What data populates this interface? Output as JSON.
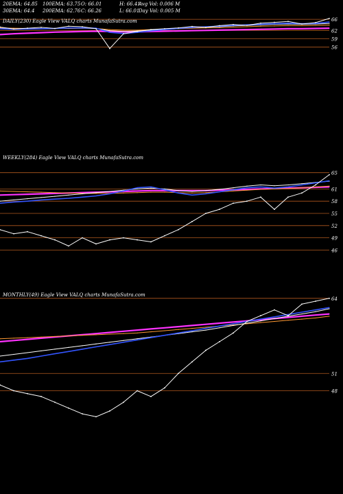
{
  "header": {
    "ema20": "20EMA: 64.85",
    "ema100": "100EMA: 63.75",
    "open": "O: 66.01",
    "high": "H: 66.41",
    "avgvol": "Avg Vol: 0.006  M",
    "ema30": "30EMA: 64.4",
    "ema200": "200EMA: 62.76",
    "close": "C: 66.26",
    "low": "L: 66.01",
    "dayvol": "Day Vol: 0.005 M"
  },
  "chart_data": [
    {
      "type": "line",
      "title": "DAILY(230) Eagle  View  VALQ charts MunafaSutra.com",
      "ylim": [
        33.5,
        67.5
      ],
      "ytick_labels": [
        "66",
        "62",
        "59",
        "56"
      ],
      "yticks": [
        66,
        62,
        59,
        56
      ],
      "grid": "horizontal price levels",
      "x": [
        0,
        1,
        2,
        3,
        4,
        5,
        6,
        7,
        8,
        9,
        10,
        11,
        12,
        13,
        14,
        15,
        16,
        17,
        18,
        19,
        20,
        21,
        22,
        23,
        24
      ],
      "series": [
        {
          "color": "#ffffff",
          "values": [
            63.2,
            62.5,
            62.8,
            63.1,
            62.7,
            63.5,
            63.3,
            62.6,
            55.5,
            60.8,
            61.6,
            62.3,
            62.6,
            62.9,
            63.4,
            63.1,
            63.7,
            64.1,
            63.8,
            64.6,
            64.9,
            65.2,
            64.3,
            64.8,
            66.3
          ]
        },
        {
          "color": "#3355ff",
          "values": [
            62.6,
            62.4,
            62.5,
            62.6,
            62.7,
            62.9,
            62.9,
            62.8,
            61.3,
            60.9,
            61.3,
            61.8,
            62.3,
            62.7,
            63.1,
            63.3,
            63.5,
            63.8,
            64,
            64.2,
            64.4,
            64.6,
            64.4,
            64.5,
            65.0
          ]
        },
        {
          "color": "#ffffff",
          "values": [
            62.7,
            62.5,
            62.5,
            62.6,
            62.7,
            62.8,
            62.8,
            62.7,
            61.9,
            61.6,
            61.8,
            62.1,
            62.4,
            62.7,
            63,
            63.2,
            63.3,
            63.6,
            63.8,
            64,
            64.2,
            64.3,
            64.2,
            64.3,
            64.5
          ]
        },
        {
          "color": "#ff9933",
          "values": [
            62.9,
            62.8,
            62.7,
            62.7,
            62.7,
            62.7,
            62.8,
            62.7,
            62.3,
            62.1,
            62.1,
            62.3,
            62.4,
            62.6,
            62.8,
            62.9,
            63,
            63.2,
            63.3,
            63.5,
            63.6,
            63.7,
            63.7,
            63.8,
            63.9
          ]
        },
        {
          "color": "#ff33ff",
          "values": [
            60.5,
            60.8,
            61.0,
            61.2,
            61.4,
            61.5,
            61.6,
            61.7,
            61.6,
            61.5,
            61.5,
            61.6,
            61.7,
            61.8,
            61.9,
            62,
            62.1,
            62.2,
            62.3,
            62.4,
            62.5,
            62.6,
            62.6,
            62.7,
            62.8
          ]
        }
      ]
    },
    {
      "type": "line",
      "title": "WEEKLY(284) Eagle  View  VALQ charts MunafaSutra.com",
      "ylim": [
        40,
        70
      ],
      "ytick_labels": [
        "65",
        "61",
        "58",
        "55",
        "52",
        "49",
        "46"
      ],
      "yticks": [
        65,
        61,
        58,
        55,
        52,
        49,
        46
      ],
      "grid": "horizontal price levels",
      "x": [
        0,
        1,
        2,
        3,
        4,
        5,
        6,
        7,
        8,
        9,
        10,
        11,
        12,
        13,
        14,
        15,
        16,
        17,
        18,
        19,
        20,
        21,
        22,
        23,
        24
      ],
      "series": [
        {
          "color": "#ffffff",
          "values": [
            51,
            50,
            50.5,
            49.5,
            48.5,
            47,
            49,
            47.5,
            48.5,
            49,
            48.5,
            48,
            49.5,
            51,
            53,
            55,
            56,
            57.5,
            58,
            59,
            56,
            59,
            60,
            62,
            64.5
          ]
        },
        {
          "color": "#3355ff",
          "values": [
            57.5,
            57.8,
            58,
            58.3,
            58.5,
            58.7,
            59,
            59.3,
            59.8,
            60.5,
            61.3,
            61.5,
            60.8,
            60,
            59.5,
            59.8,
            60.3,
            60.8,
            61.3,
            61.5,
            61.2,
            61.5,
            62,
            62.5,
            63.0
          ]
        },
        {
          "color": "#ffffff",
          "values": [
            58,
            58.3,
            58.6,
            58.9,
            59.2,
            59.5,
            59.8,
            60.1,
            60.4,
            60.7,
            61,
            61.2,
            61.0,
            60.6,
            60.4,
            60.6,
            60.9,
            61.3,
            61.7,
            62,
            61.8,
            62,
            62.3,
            62.6,
            62.9
          ]
        },
        {
          "color": "#ff9933",
          "values": [
            60.5,
            60.4,
            60.3,
            60.2,
            60.1,
            60,
            59.9,
            59.9,
            59.9,
            60,
            60.1,
            60.2,
            60.2,
            60.1,
            60,
            60.1,
            60.3,
            60.5,
            60.7,
            60.9,
            61,
            61.1,
            61.3,
            61.5,
            61.7
          ]
        },
        {
          "color": "#ff33ff",
          "values": [
            59.5,
            59.6,
            59.7,
            59.8,
            59.9,
            60,
            60.1,
            60.2,
            60.3,
            60.4,
            60.5,
            60.6,
            60.6,
            60.6,
            60.6,
            60.6,
            60.7,
            60.8,
            60.9,
            61,
            61.1,
            61.2,
            61.3,
            61.4,
            61.5
          ]
        }
      ]
    },
    {
      "type": "line",
      "title": "MONTHLY(49) Eagle  View  VALQ charts MunafaSutra.com",
      "ylim": [
        42,
        66
      ],
      "ytick_labels": [
        "64",
        "51",
        "48"
      ],
      "yticks": [
        64,
        51,
        48
      ],
      "grid": "horizontal price levels",
      "x": [
        0,
        1,
        2,
        3,
        4,
        5,
        6,
        7,
        8,
        9,
        10,
        11,
        12,
        13,
        14,
        15,
        16,
        17,
        18,
        19,
        20,
        21,
        22,
        23,
        24
      ],
      "series": [
        {
          "color": "#ffffff",
          "values": [
            49,
            48,
            47.5,
            47,
            46,
            45,
            44,
            43.5,
            44.5,
            46,
            48,
            47,
            48.5,
            51,
            53,
            55,
            56.5,
            58,
            60,
            61,
            62,
            61,
            63,
            63.5,
            64.0
          ]
        },
        {
          "color": "#3355ff",
          "values": [
            53,
            53.3,
            53.6,
            54,
            54.4,
            54.8,
            55.2,
            55.6,
            56,
            56.4,
            56.8,
            57.2,
            57.6,
            58,
            58.4,
            58.8,
            59.2,
            59.6,
            60,
            60.4,
            60.8,
            61.2,
            61.6,
            62,
            62.4
          ]
        },
        {
          "color": "#ffffff",
          "values": [
            54,
            54.3,
            54.6,
            54.9,
            55.2,
            55.5,
            55.8,
            56.1,
            56.4,
            56.7,
            57,
            57.3,
            57.6,
            57.9,
            58.2,
            58.5,
            58.9,
            59.3,
            59.7,
            60.1,
            60.5,
            60.9,
            61.3,
            61.7,
            62.2
          ]
        },
        {
          "color": "#ff9933",
          "values": [
            57,
            57.1,
            57.2,
            57.3,
            57.4,
            57.5,
            57.6,
            57.7,
            57.8,
            57.9,
            58,
            58.2,
            58.4,
            58.6,
            58.8,
            59,
            59.2,
            59.4,
            59.6,
            59.8,
            60,
            60.2,
            60.4,
            60.6,
            60.9
          ]
        },
        {
          "color": "#ff33ff",
          "values": [
            56.5,
            56.7,
            56.9,
            57.1,
            57.3,
            57.5,
            57.7,
            57.9,
            58.1,
            58.3,
            58.5,
            58.7,
            58.9,
            59.1,
            59.3,
            59.5,
            59.7,
            59.9,
            60.1,
            60.3,
            60.5,
            60.7,
            60.9,
            61.1,
            61.3
          ]
        }
      ]
    }
  ]
}
